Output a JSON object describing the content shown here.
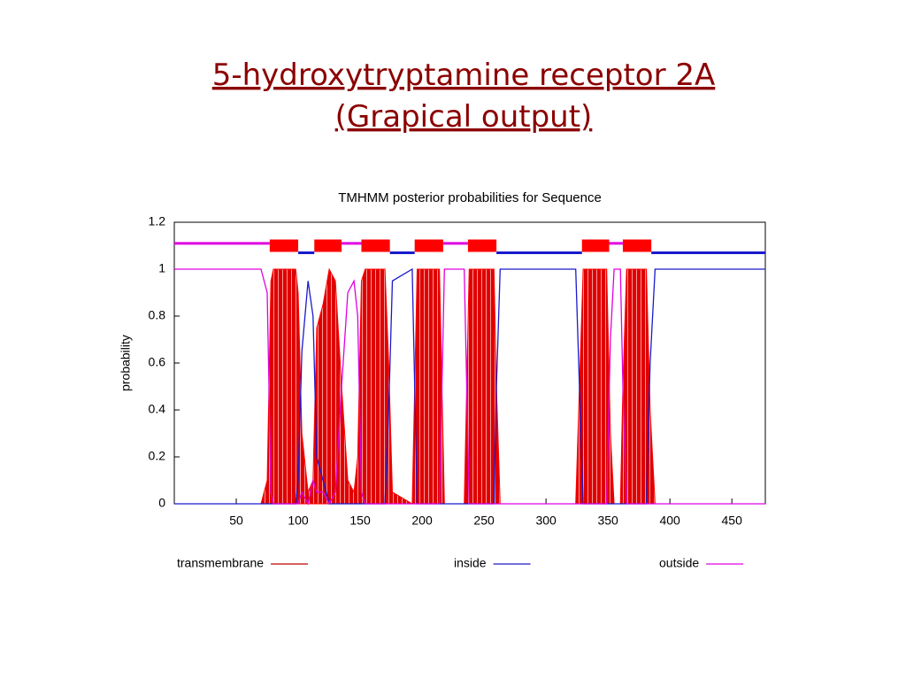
{
  "slide": {
    "title": [
      "5-hydroxytryptamine receptor 2A",
      "(Grapical output)"
    ]
  },
  "chart_data": {
    "type": "line",
    "title": "TMHMM posterior probabilities for Sequence",
    "y_label": "probability",
    "xlim": [
      0,
      477
    ],
    "xticks": [
      50,
      100,
      150,
      200,
      250,
      300,
      350,
      400,
      450
    ],
    "ylim": [
      0,
      1.2
    ],
    "yticks": [
      0,
      0.2,
      0.4,
      0.6,
      0.8,
      1,
      1.2
    ],
    "x": [
      0,
      70,
      75,
      78,
      80,
      98,
      100,
      103,
      108,
      112,
      115,
      120,
      125,
      130,
      135,
      140,
      145,
      148,
      151,
      154,
      170,
      173,
      176,
      192,
      194,
      196,
      214,
      216,
      218,
      234,
      236,
      238,
      258,
      260,
      263,
      324,
      327,
      330,
      349,
      352,
      355,
      360,
      362,
      365,
      381,
      384,
      388,
      477
    ],
    "series": [
      {
        "name": "transmembrane",
        "color": "#ff0000",
        "fill": true,
        "segment_level": 1.1,
        "segments": [
          [
            77,
            100
          ],
          [
            113,
            135
          ],
          [
            151,
            174
          ],
          [
            194,
            217
          ],
          [
            237,
            260
          ],
          [
            329,
            351
          ],
          [
            362,
            385
          ]
        ],
        "values": [
          0,
          0,
          0.1,
          0.95,
          1,
          1,
          0.9,
          0.3,
          0.05,
          0.1,
          0.75,
          0.85,
          1,
          0.95,
          0.5,
          0.1,
          0.05,
          0.2,
          0.95,
          1,
          1,
          0.6,
          0.05,
          0,
          0.5,
          1,
          1,
          0.5,
          0,
          0,
          0.5,
          1,
          1,
          0.5,
          0,
          0,
          0.5,
          1,
          1,
          0.3,
          0,
          0,
          0.5,
          1,
          1,
          0.4,
          0,
          0
        ]
      },
      {
        "name": "inside",
        "color": "#1a1acc",
        "fill": false,
        "segment_level": 1.07,
        "segments": [
          [
            100,
            113
          ],
          [
            174,
            194
          ],
          [
            260,
            329
          ],
          [
            385,
            477
          ]
        ],
        "values": [
          0,
          0,
          0,
          0,
          0,
          0,
          0.1,
          0.65,
          0.95,
          0.8,
          0.2,
          0.1,
          0,
          0,
          0,
          0,
          0,
          0,
          0,
          0,
          0,
          0.4,
          0.95,
          1,
          0.5,
          0,
          0,
          0,
          0,
          0,
          0,
          0,
          0,
          0.5,
          1,
          1,
          0.5,
          0,
          0,
          0,
          0,
          0,
          0,
          0,
          0,
          0.6,
          1,
          1
        ]
      },
      {
        "name": "outside",
        "color": "#e000e0",
        "fill": false,
        "segment_level": 1.11,
        "segments": [
          [
            0,
            77
          ],
          [
            135,
            151
          ],
          [
            217,
            237
          ],
          [
            351,
            362
          ]
        ],
        "values": [
          1,
          1,
          0.9,
          0.05,
          0,
          0,
          0,
          0.05,
          0,
          0.1,
          0.05,
          0.05,
          0,
          0.05,
          0.5,
          0.9,
          0.95,
          0.8,
          0.05,
          0,
          0,
          0,
          0,
          0,
          0,
          0,
          0,
          0.5,
          1,
          1,
          0.5,
          0,
          0,
          0,
          0,
          0,
          0,
          0,
          0,
          0.7,
          1,
          1,
          0.5,
          0,
          0,
          0,
          0,
          0
        ]
      }
    ]
  }
}
